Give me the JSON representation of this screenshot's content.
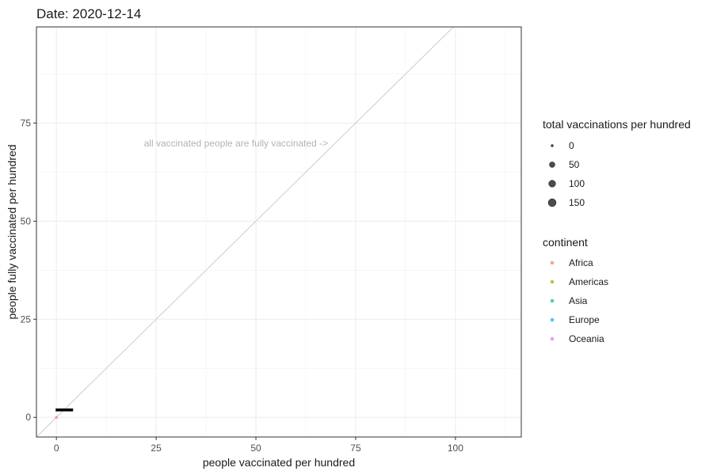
{
  "chart_data": {
    "type": "scatter",
    "title": "Date: 2020-12-14",
    "xlabel": "people vaccinated per hundred",
    "ylabel": "people fully vaccinated per hundred",
    "xlim": [
      -5,
      116.5
    ],
    "ylim": [
      -5,
      99.5
    ],
    "x_ticks": [
      0,
      25,
      50,
      75,
      100
    ],
    "y_ticks": [
      0,
      25,
      50,
      75
    ],
    "grid": true,
    "reference_line": {
      "slope": 1,
      "intercept": 0,
      "color": "#cccccc"
    },
    "annotation": {
      "text": "all vaccinated people are fully vaccinated ->",
      "x": 45,
      "y": 69,
      "color": "#b3b3b3"
    },
    "points": [
      {
        "x": 0.0,
        "y": 0.0,
        "size": 0.1,
        "continent": "Africa",
        "color": "#F8766D"
      }
    ],
    "point_labels": [
      {
        "text": "",
        "x": 2.0,
        "y": 1.9
      }
    ],
    "legend_size": {
      "title": "total vaccinations per hundred",
      "entries": [
        {
          "label": "0",
          "value": 0
        },
        {
          "label": "50",
          "value": 50
        },
        {
          "label": "100",
          "value": 100
        },
        {
          "label": "150",
          "value": 150
        }
      ]
    },
    "legend_color": {
      "title": "continent",
      "entries": [
        {
          "label": "Africa",
          "color": "#F8766D"
        },
        {
          "label": "Americas",
          "color": "#A3A500"
        },
        {
          "label": "Asia",
          "color": "#00BF7D"
        },
        {
          "label": "Europe",
          "color": "#00B0F6"
        },
        {
          "label": "Oceania",
          "color": "#E76BF3"
        }
      ]
    },
    "legend_placement": "right"
  }
}
